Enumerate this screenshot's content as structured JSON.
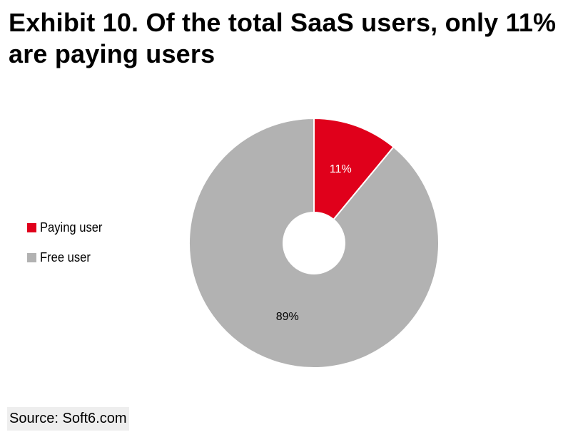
{
  "title": "Exhibit 10. Of the total SaaS users, only 11% are paying users",
  "source": "Source: Soft6.com",
  "chart_data": {
    "type": "pie",
    "style": "donut",
    "categories": [
      "Paying user",
      "Free user"
    ],
    "values": [
      11,
      89
    ],
    "data_labels": [
      "11%",
      "89%"
    ],
    "colors": [
      "#e0001b",
      "#b2b2b2"
    ],
    "legend_placement": "left"
  }
}
